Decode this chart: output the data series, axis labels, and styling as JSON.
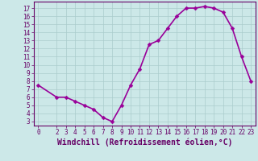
{
  "x": [
    0,
    2,
    3,
    4,
    5,
    6,
    7,
    8,
    9,
    10,
    11,
    12,
    13,
    14,
    15,
    16,
    17,
    18,
    19,
    20,
    21,
    22,
    23
  ],
  "y": [
    7.5,
    6.0,
    6.0,
    5.5,
    5.0,
    4.5,
    3.5,
    3.0,
    5.0,
    7.5,
    9.5,
    12.5,
    13.0,
    14.5,
    16.0,
    17.0,
    17.0,
    17.2,
    17.0,
    16.5,
    14.5,
    11.0,
    8.0
  ],
  "line_color": "#990099",
  "marker": "D",
  "marker_size": 2.5,
  "bg_color": "#cce8e8",
  "grid_color": "#aacccc",
  "tick_color": "#660066",
  "xlabel": "Windchill (Refroidissement éolien,°C)",
  "xlabel_fontsize": 7,
  "ylabel_ticks": [
    3,
    4,
    5,
    6,
    7,
    8,
    9,
    10,
    11,
    12,
    13,
    14,
    15,
    16,
    17
  ],
  "xlim": [
    -0.5,
    23.5
  ],
  "ylim": [
    2.5,
    17.8
  ],
  "xticks": [
    0,
    2,
    3,
    4,
    5,
    6,
    7,
    8,
    9,
    10,
    11,
    12,
    13,
    14,
    15,
    16,
    17,
    18,
    19,
    20,
    21,
    22,
    23
  ],
  "tick_fontsize": 5.5,
  "line_width": 1.2,
  "spine_color": "#660066"
}
